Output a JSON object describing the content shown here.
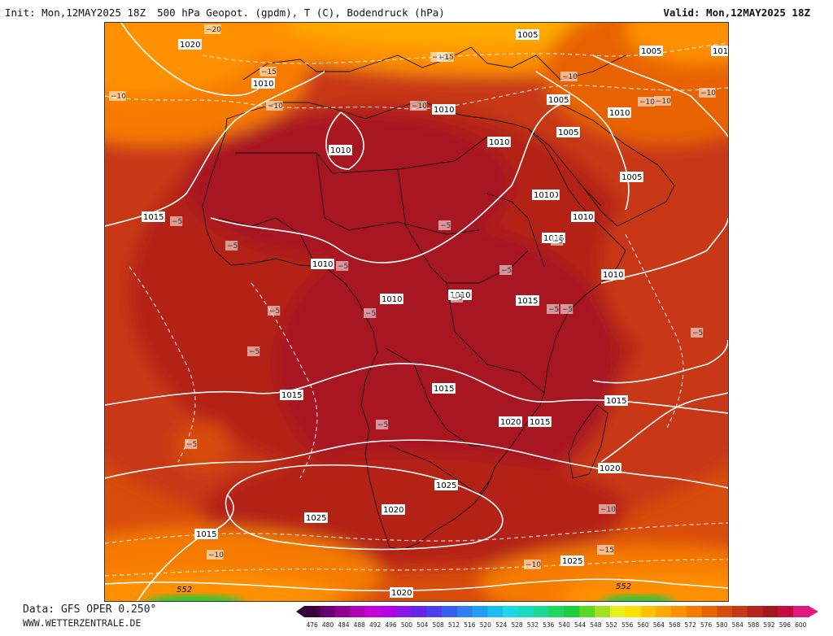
{
  "header": {
    "init": "Init: Mon,12MAY2025 18Z",
    "title": "500 hPa Geopot. (gpdm), T (C), Bodendruck (hPa)",
    "valid": "Valid: Mon,12MAY2025 18Z"
  },
  "footer": {
    "data_line": "Data: GFS OPER 0.250°",
    "site": "WWW.WETTERZENTRALE.DE"
  },
  "legend": {
    "ticks": [
      "476",
      "480",
      "484",
      "488",
      "492",
      "496",
      "500",
      "504",
      "508",
      "512",
      "516",
      "520",
      "524",
      "528",
      "532",
      "536",
      "540",
      "544",
      "548",
      "552",
      "556",
      "560",
      "564",
      "568",
      "572",
      "576",
      "580",
      "584",
      "588",
      "592",
      "596",
      "600"
    ],
    "colors": [
      "#3a003a",
      "#6a0070",
      "#900090",
      "#b000b8",
      "#c800d8",
      "#b400e6",
      "#8a18e6",
      "#6428e6",
      "#4a40ec",
      "#3a5ef0",
      "#2e80f0",
      "#20a0f0",
      "#1cc0f0",
      "#1cd8e8",
      "#1cd8c0",
      "#1cd890",
      "#1cd860",
      "#1ccc3c",
      "#5ad828",
      "#a0e020",
      "#e6f020",
      "#ffe000",
      "#ffc400",
      "#ffaa00",
      "#ff9000",
      "#f57a00",
      "#e86400",
      "#d84c0c",
      "#c83818",
      "#b42418",
      "#a81420",
      "#c40c40",
      "#e0187c"
    ]
  },
  "map": {
    "pressure_labels": [
      "1020",
      "1005",
      "1005",
      "1010",
      "1015",
      "1010",
      "1010",
      "1005",
      "1010",
      "1010",
      "1005",
      "1010",
      "1010",
      "1010",
      "1015",
      "1010",
      "1015",
      "1010",
      "1010",
      "1010",
      "1015",
      "1015",
      "1015",
      "1015",
      "1020",
      "1020",
      "1025",
      "1020",
      "1025",
      "1015",
      "1025",
      "1020",
      "1010",
      "101",
      "1005"
    ],
    "temp_labels": [
      "-20",
      "-15",
      "-15",
      "-10",
      "-10",
      "-10",
      "-15",
      "-10",
      "-10",
      "-10",
      "-5",
      "-5",
      "-5",
      "-5",
      "-5",
      "-5",
      "-5",
      "-5",
      "-5",
      "-5",
      "-5",
      "-5",
      "-5",
      "-5",
      "-5",
      "-10",
      "-10",
      "-15",
      "-10",
      "-10"
    ],
    "geopot_labels": [
      "552",
      "552"
    ],
    "colors": {
      "deep": "#a81420",
      "dark": "#b42418",
      "mid": "#c83818",
      "outer": "#d84c0c",
      "orange": "#e86400",
      "light_orange": "#f57a00",
      "amber": "#ff9000",
      "yellow_orange": "#ffaa00",
      "gold": "#ffc400",
      "green": "#1ccc3c",
      "isobar": "#ffffff",
      "coast": "#111111"
    }
  }
}
